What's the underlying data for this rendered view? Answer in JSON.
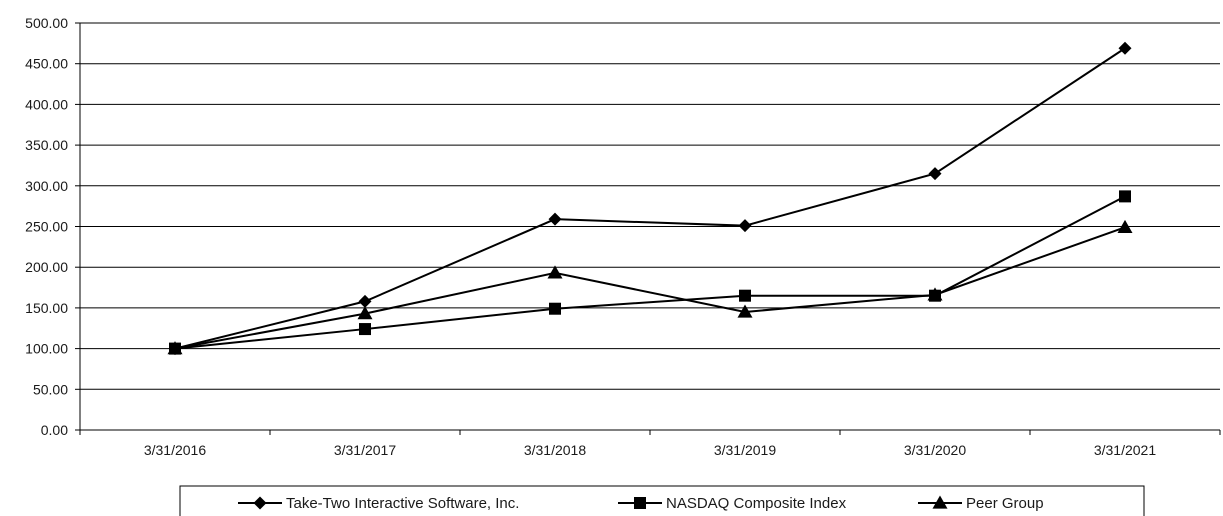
{
  "chart_data": {
    "type": "line",
    "title": "",
    "xlabel": "",
    "ylabel": "",
    "categories": [
      "3/31/2016",
      "3/31/2017",
      "3/31/2018",
      "3/31/2019",
      "3/31/2020",
      "3/31/2021"
    ],
    "ylim": [
      0,
      500
    ],
    "yticks": [
      "0.00",
      "50.00",
      "100.00",
      "150.00",
      "200.00",
      "250.00",
      "300.00",
      "350.00",
      "400.00",
      "450.00",
      "500.00"
    ],
    "grid": true,
    "legend_position": "bottom",
    "series": [
      {
        "name": "Take-Two Interactive Software, Inc.",
        "marker": "diamond",
        "values": [
          100,
          158,
          259,
          251,
          315,
          469
        ]
      },
      {
        "name": "NASDAQ Composite Index",
        "marker": "square",
        "values": [
          100,
          124,
          149,
          165,
          165,
          287
        ]
      },
      {
        "name": "Peer Group",
        "marker": "triangle",
        "values": [
          100,
          143,
          193,
          145,
          166,
          249
        ]
      }
    ],
    "colors": {
      "line": "#000000",
      "grid": "#000000",
      "axis": "#000000"
    }
  }
}
